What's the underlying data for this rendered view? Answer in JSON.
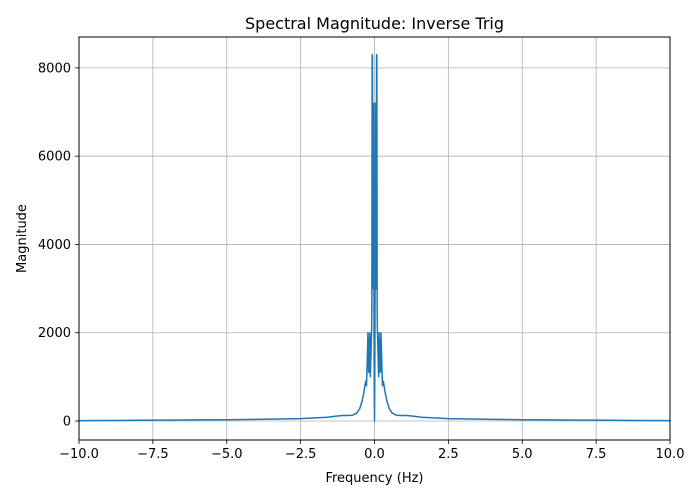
{
  "chart_data": {
    "type": "line",
    "title": "Spectral Magnitude: Inverse Trig",
    "xlabel": "Frequency (Hz)",
    "ylabel": "Magnitude",
    "xlim": [
      -10,
      10
    ],
    "ylim": [
      -430,
      8700
    ],
    "grid": true,
    "x_ticks": [
      -10,
      -7.5,
      -5,
      -2.5,
      0,
      2.5,
      5,
      7.5,
      10
    ],
    "x_tick_labels": [
      "−10.0",
      "−7.5",
      "−5.0",
      "−2.5",
      "0.0",
      "2.5",
      "5.0",
      "7.5",
      "10.0"
    ],
    "y_ticks": [
      0,
      2000,
      4000,
      6000,
      8000
    ],
    "y_tick_labels": [
      "0",
      "2000",
      "4000",
      "6000",
      "8000"
    ],
    "colors": {
      "series": "#1f77b4",
      "grid": "#b0b0b0"
    },
    "series": [
      {
        "x": [
          -10,
          -9,
          -8,
          -7,
          -6,
          -5,
          -4,
          -3,
          -2.5,
          -2,
          -1.6,
          -1.3,
          -1.1,
          -0.9,
          -0.75,
          -0.6,
          -0.5,
          -0.42,
          -0.36,
          -0.3,
          -0.27,
          -0.24,
          -0.22,
          -0.2,
          -0.18,
          -0.16,
          -0.14,
          -0.12,
          -0.1,
          -0.09,
          -0.08,
          -0.07,
          -0.06,
          -0.05,
          -0.04,
          -0.03,
          -0.02,
          -0.01,
          0,
          0.01,
          0.02,
          0.03,
          0.04,
          0.05,
          0.06,
          0.07,
          0.08,
          0.09,
          0.1,
          0.12,
          0.14,
          0.16,
          0.18,
          0.2,
          0.22,
          0.24,
          0.27,
          0.3,
          0.36,
          0.42,
          0.5,
          0.6,
          0.75,
          0.9,
          1.1,
          1.3,
          1.6,
          2,
          2.5,
          3,
          4,
          5,
          6,
          7,
          8,
          9,
          10
        ],
        "y": [
          10,
          12,
          16,
          20,
          25,
          30,
          38,
          48,
          55,
          70,
          85,
          110,
          125,
          125,
          130,
          180,
          280,
          450,
          650,
          900,
          800,
          1500,
          2000,
          1100,
          1200,
          2000,
          1000,
          1500,
          2000,
          2500,
          8300,
          8250,
          3000,
          6500,
          5000,
          7200,
          3000,
          1000,
          0,
          1000,
          3000,
          7200,
          5000,
          6500,
          3000,
          8250,
          8300,
          2500,
          2000,
          1500,
          1000,
          2000,
          1200,
          1100,
          2000,
          1500,
          800,
          900,
          650,
          450,
          280,
          180,
          130,
          125,
          125,
          110,
          85,
          70,
          55,
          48,
          38,
          30,
          25,
          20,
          16,
          12,
          10
        ]
      }
    ]
  }
}
